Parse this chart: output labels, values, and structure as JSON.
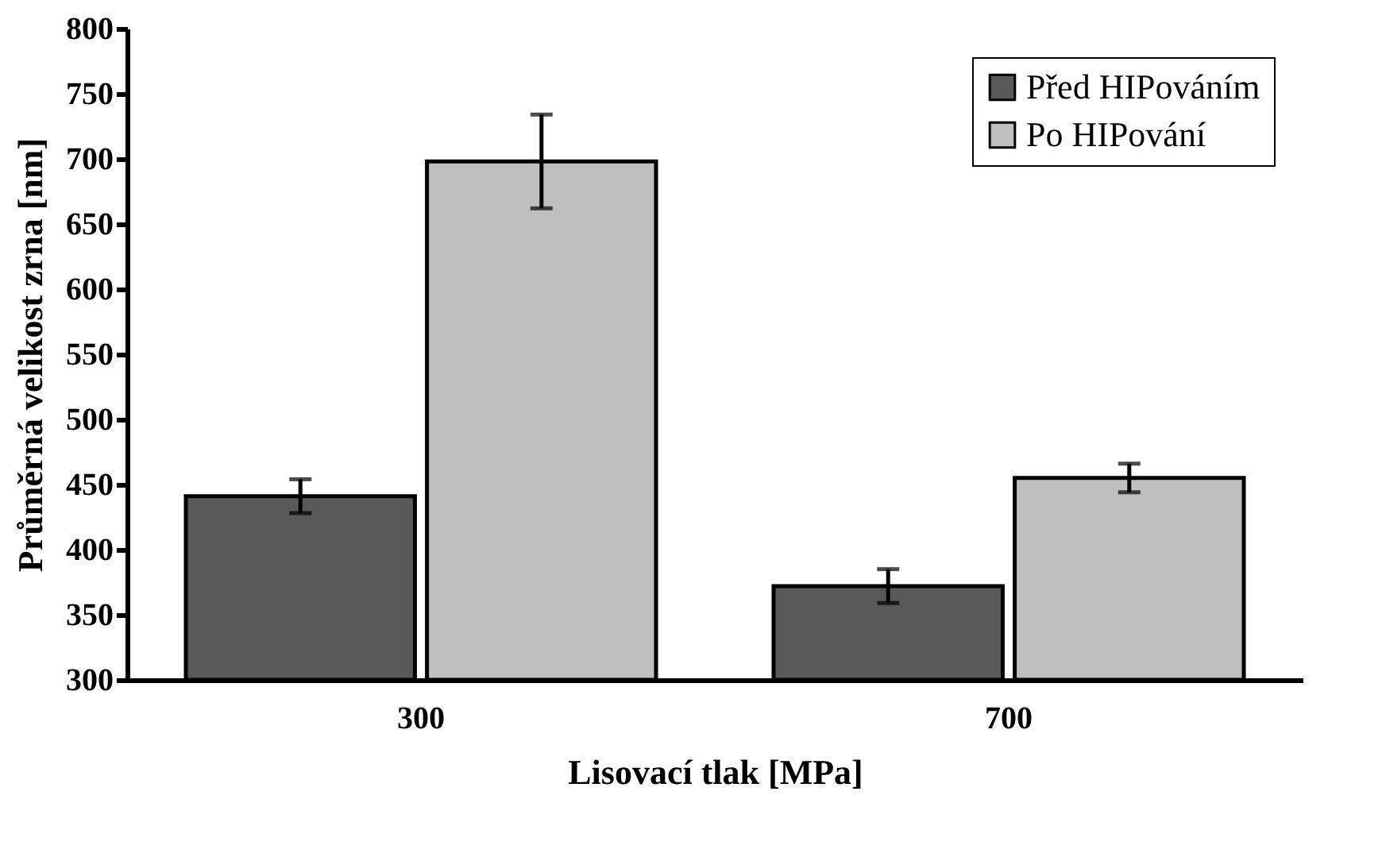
{
  "chart_data": {
    "type": "bar",
    "xlabel": "Lisovací tlak [MPa]",
    "ylabel": "Průměrná velikost zrna [nm]",
    "categories": [
      "300",
      "700"
    ],
    "series": [
      {
        "name": "Před HIPováním",
        "color": "#595959",
        "values": [
          441,
          372
        ],
        "errors": [
          13,
          13
        ]
      },
      {
        "name": "Po HIPování",
        "color": "#bfbfbf",
        "values": [
          698,
          455
        ],
        "errors": [
          36,
          11
        ]
      }
    ],
    "ylim": [
      300,
      800
    ],
    "yticks": [
      300,
      350,
      400,
      450,
      500,
      550,
      600,
      650,
      700,
      750,
      800
    ],
    "grid": false,
    "legend": "top right"
  }
}
